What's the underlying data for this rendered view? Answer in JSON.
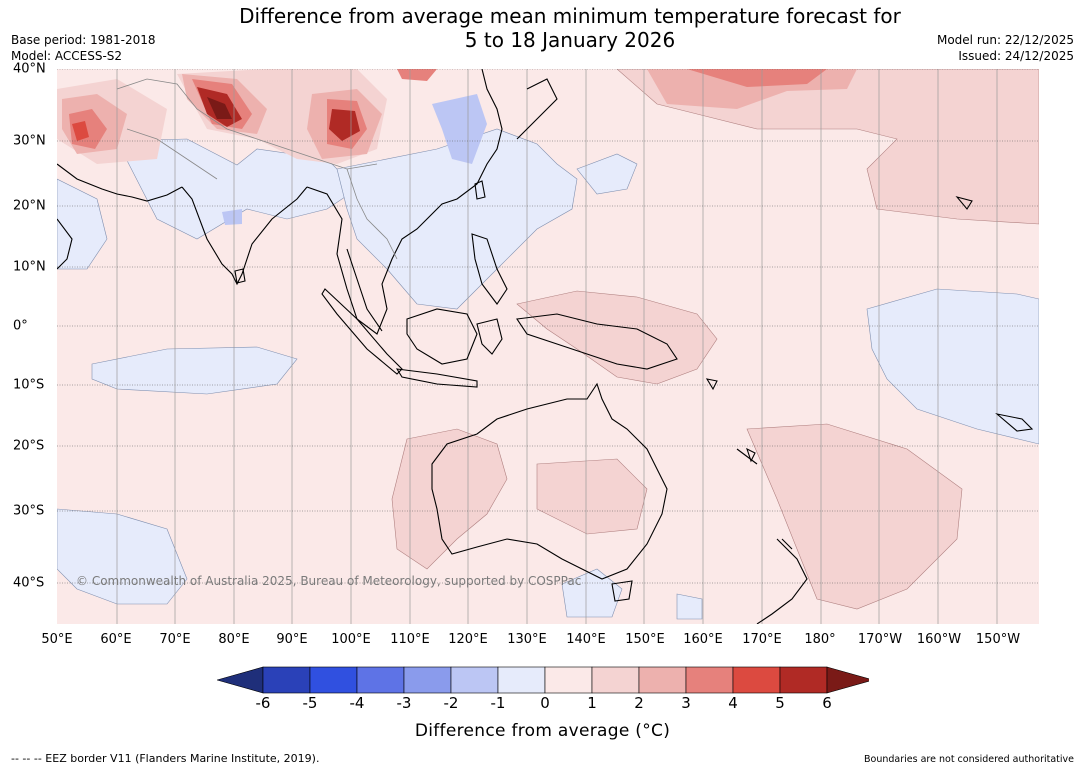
{
  "header": {
    "title_line1": "Difference from average mean minimum temperature forecast for",
    "title_line2": "5 to 18 January 2026",
    "base_period": "Base period: 1981-2018",
    "model": "Model: ACCESS-S2",
    "model_run": "Model run: 22/12/2025",
    "issued": "Issued: 24/12/2025"
  },
  "map": {
    "copyright": "© Commonwealth of Australia 2025, Bureau of Meteorology, supported by COSPPac",
    "longitude_labels": [
      "50°E",
      "60°E",
      "70°E",
      "80°E",
      "90°E",
      "100°E",
      "110°E",
      "120°E",
      "130°E",
      "140°E",
      "150°E",
      "160°E",
      "170°E",
      "180°",
      "170°W",
      "160°W",
      "150°W"
    ],
    "latitude_labels": [
      "40°N",
      "30°N",
      "20°N",
      "10°N",
      "0°",
      "10°S",
      "20°S",
      "30°S",
      "40°S"
    ]
  },
  "colorbar": {
    "ticks": [
      "-6",
      "-5",
      "-4",
      "-3",
      "-2",
      "-1",
      "0",
      "1",
      "2",
      "3",
      "4",
      "5",
      "6"
    ],
    "colors": [
      "#1f2f7a",
      "#2a41b8",
      "#3050e0",
      "#5e73e6",
      "#8a9bec",
      "#bcc6f4",
      "#e6ebfb",
      "#fbe9e8",
      "#f4d3d2",
      "#edb1ae",
      "#e6817c",
      "#dc4a40",
      "#b02a25",
      "#7a1a17"
    ],
    "label": "Difference from average (°C)"
  },
  "footer": {
    "eez": "--  --  -- EEZ border V11 (Flanders Marine Institute, 2019).",
    "disclaimer": "Boundaries are not considered authoritative"
  }
}
